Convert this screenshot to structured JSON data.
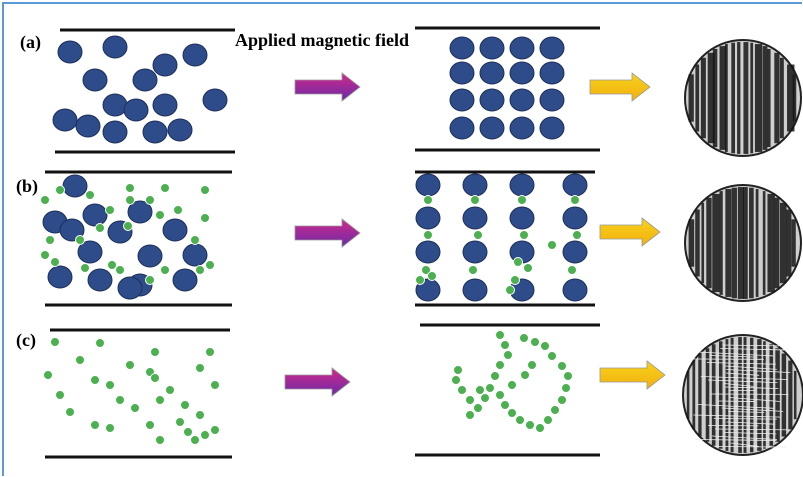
{
  "panels": [
    {
      "label": "(a)"
    },
    {
      "label": "(b)"
    },
    {
      "label": "(c)"
    }
  ],
  "annotation": "Applied magnetic field"
}
